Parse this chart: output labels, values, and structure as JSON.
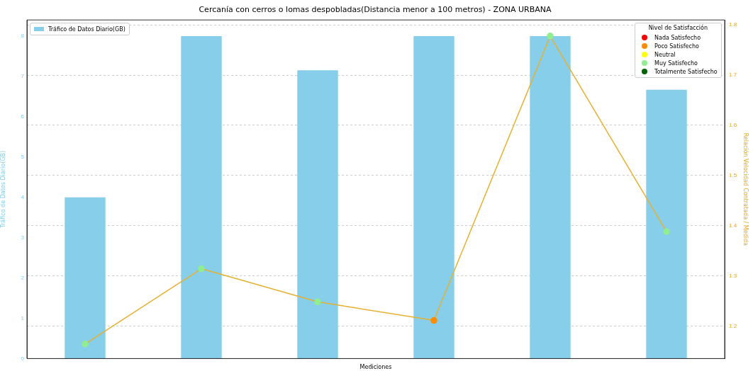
{
  "chart_data": {
    "type": "bar",
    "title": "Cercanía con cerros o lomas despobladas(Distancia menor a 100 metros) - ZONA URBANA",
    "xlabel": "Mediciones",
    "ylabel": "Tráfico de Datos Diario(GB)",
    "y2label": "Relación Velocidad Contratada / Medida",
    "legend_title": "Nivel de Satisfacción",
    "categories": [
      null,
      null,
      null,
      null,
      null,
      null
    ],
    "series": [
      {
        "name": "Tráfico de Datos Diario(GB)",
        "color": "#87ceeb",
        "values": [
          4,
          8,
          7.15,
          8,
          8,
          6.67
        ]
      },
      {
        "type": "line",
        "axis": "y2",
        "color": "#e6b030",
        "colors": [
          "#90ee90",
          "#90ee90",
          "#90ee90",
          "#ff8c00",
          "#90ee90",
          "#90ee90"
        ],
        "values": [
          1.164,
          1.314,
          1.248,
          1.211,
          1.778,
          1.388
        ]
      },
      {
        "name": "Nada Satisfecho",
        "type": "scatter",
        "axis": "y2",
        "color": "#ff0000",
        "values": [
          null,
          null,
          null,
          null,
          null,
          null
        ]
      },
      {
        "name": "Poco Satisfecho",
        "type": "scatter",
        "axis": "y2",
        "color": "#ff8c00",
        "values": [
          null,
          null,
          null,
          null,
          null,
          null
        ]
      },
      {
        "name": "Neutral",
        "type": "scatter",
        "axis": "y2",
        "color": "#ffff00",
        "values": [
          null,
          null,
          null,
          null,
          null,
          null
        ]
      },
      {
        "name": "Muy Satisfecho",
        "type": "scatter",
        "axis": "y2",
        "color": "#90ee90",
        "values": [
          null,
          null,
          null,
          null,
          null,
          null
        ]
      },
      {
        "name": "Totalmente Satisfecho",
        "type": "scatter",
        "axis": "y2",
        "color": "#006400",
        "values": [
          null,
          null,
          null,
          null,
          null,
          null
        ]
      }
    ],
    "ylim": [
      0,
      8.4
    ],
    "yticks": [
      0,
      1,
      2,
      3,
      4,
      5,
      6,
      7,
      8
    ],
    "y2lim": [
      1.135,
      1.81
    ],
    "y2ticks": [
      1.2,
      1.3,
      1.4,
      1.5,
      1.6,
      1.7,
      1.8
    ],
    "grid": true,
    "legend": "top left",
    "marker": "circle",
    "line_style": "solid"
  }
}
